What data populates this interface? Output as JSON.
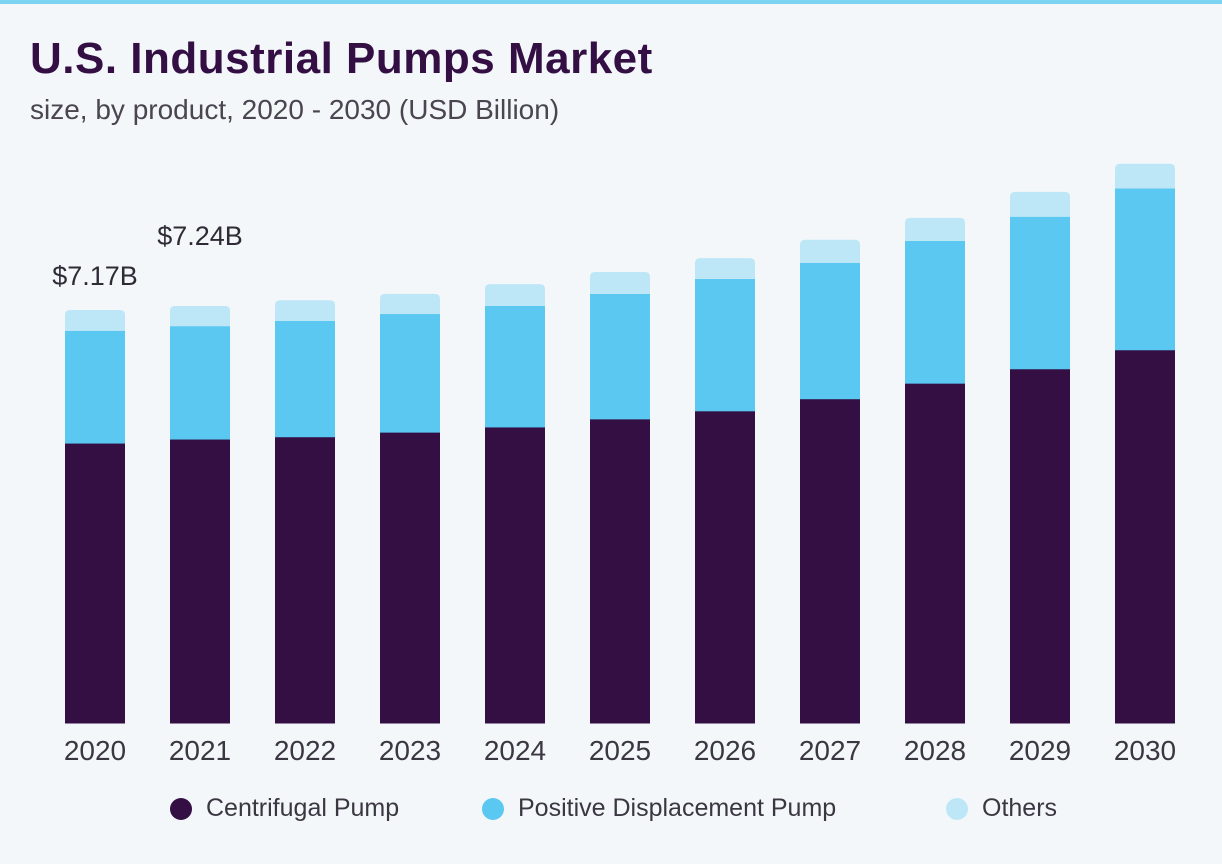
{
  "chart_data": {
    "type": "bar",
    "stacked": true,
    "title": "U.S. Industrial Pumps Market",
    "subtitle": "size, by product, 2020 - 2030 (USD Billion)",
    "categories": [
      "2020",
      "2021",
      "2022",
      "2023",
      "2024",
      "2025",
      "2026",
      "2027",
      "2028",
      "2029",
      "2030"
    ],
    "series": [
      {
        "name": "Centrifugal Pump",
        "color": "#330f44",
        "values": [
          4.86,
          4.93,
          4.97,
          5.05,
          5.14,
          5.28,
          5.42,
          5.63,
          5.9,
          6.15,
          6.48
        ]
      },
      {
        "name": "Positive Displacement Pump",
        "color": "#5bc8f2",
        "values": [
          1.95,
          1.96,
          2.01,
          2.05,
          2.1,
          2.17,
          2.29,
          2.36,
          2.47,
          2.64,
          2.8
        ]
      },
      {
        "name": "Others",
        "color": "#bde7f7",
        "values": [
          0.36,
          0.35,
          0.36,
          0.35,
          0.38,
          0.38,
          0.36,
          0.4,
          0.4,
          0.43,
          0.43
        ]
      }
    ],
    "annotations": [
      {
        "category": "2020",
        "text": "$7.17B"
      },
      {
        "category": "2021",
        "text": "$7.24B"
      }
    ],
    "ylim": [
      0,
      10
    ],
    "grid": false,
    "y_axis_visible": false,
    "legend": "bottom",
    "xlabel": "",
    "ylabel": ""
  },
  "colors": {
    "background": "#f3f7fa",
    "accent_line": "#7dd3f2",
    "title": "#330f44"
  }
}
